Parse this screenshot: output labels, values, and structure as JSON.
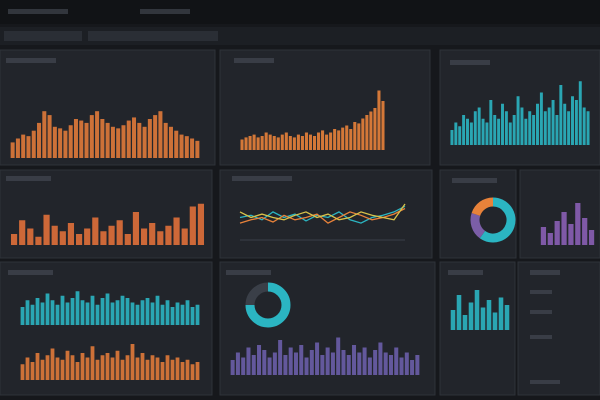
{
  "panels": [
    {
      "type": "bar",
      "color": "#e07a3a",
      "ylim": [
        0,
        100
      ],
      "values": [
        20,
        25,
        30,
        28,
        35,
        45,
        60,
        55,
        40,
        38,
        35,
        42,
        50,
        48,
        45,
        55,
        60,
        50,
        45,
        40,
        38,
        42,
        48,
        52,
        45,
        40,
        50,
        55,
        60,
        45,
        40,
        35,
        30,
        28,
        25,
        22
      ]
    },
    {
      "type": "bar",
      "color": "#e8823a",
      "ylim": [
        0,
        100
      ],
      "values": [
        15,
        18,
        20,
        22,
        18,
        20,
        25,
        22,
        20,
        18,
        22,
        25,
        20,
        18,
        22,
        20,
        25,
        22,
        20,
        25,
        28,
        22,
        25,
        30,
        28,
        32,
        35,
        30,
        40,
        38,
        45,
        50,
        55,
        60,
        85,
        70
      ]
    },
    {
      "type": "bar",
      "color": "#2bb5c2",
      "ylim": [
        0,
        100
      ],
      "values": [
        20,
        30,
        25,
        40,
        35,
        30,
        45,
        50,
        35,
        30,
        60,
        40,
        35,
        55,
        45,
        30,
        40,
        65,
        50,
        35,
        45,
        40,
        55,
        70,
        45,
        50,
        60,
        40,
        80,
        55,
        45,
        65,
        60,
        85,
        50,
        45
      ]
    },
    {
      "type": "bar",
      "color": "#e0703a",
      "ylim": [
        0,
        100
      ],
      "values": [
        20,
        45,
        30,
        15,
        55,
        35,
        25,
        40,
        20,
        30,
        50,
        25,
        35,
        45,
        20,
        60,
        30,
        40,
        25,
        35,
        50,
        30,
        70,
        75
      ]
    },
    {
      "type": "line",
      "ylim": [
        30,
        70
      ],
      "series": [
        {
          "color": "#2bb5c2",
          "values": [
            50,
            52,
            48,
            55,
            50,
            53,
            47,
            52,
            50,
            55,
            48,
            45,
            50,
            52,
            55,
            60
          ]
        },
        {
          "color": "#e8823a",
          "values": [
            45,
            48,
            50,
            46,
            52,
            48,
            50,
            53,
            45,
            50,
            55,
            52,
            48,
            50,
            53,
            58
          ]
        },
        {
          "color": "#d9c24a",
          "values": [
            55,
            50,
            53,
            50,
            48,
            52,
            55,
            50,
            53,
            48,
            50,
            55,
            52,
            50,
            48,
            62
          ]
        }
      ]
    },
    {
      "type": "donut",
      "colors": [
        "#2bb5c2",
        "#7b5ea7",
        "#e8823a"
      ],
      "values": [
        60,
        20,
        20
      ]
    },
    {
      "type": "bar",
      "color": "#8a5fb5",
      "ylim": [
        0,
        100
      ],
      "values": [
        30,
        20,
        40,
        55,
        35,
        70,
        45,
        25
      ]
    },
    {
      "type": "bar",
      "color": "#2bb5c2",
      "ylim": [
        0,
        100
      ],
      "values": [
        40,
        55,
        45,
        60,
        50,
        70,
        55,
        45,
        65,
        50,
        60,
        75,
        55,
        50,
        65,
        45,
        60,
        70,
        50,
        55,
        65,
        60,
        50,
        45,
        55,
        60,
        50,
        65,
        45,
        55,
        40,
        50,
        45,
        55,
        40,
        45
      ]
    },
    {
      "type": "bar",
      "color": "#e07a3a",
      "ylim": [
        0,
        100
      ],
      "values": [
        35,
        50,
        40,
        60,
        45,
        55,
        70,
        50,
        45,
        65,
        55,
        40,
        60,
        50,
        75,
        45,
        55,
        60,
        50,
        65,
        45,
        55,
        80,
        50,
        60,
        45,
        55,
        50,
        40,
        55,
        45,
        50,
        40,
        45,
        35,
        40
      ]
    },
    {
      "type": "donut",
      "colors": [
        "#2bb5c2",
        "#3a3f48"
      ],
      "values": [
        75,
        25
      ]
    },
    {
      "type": "bar",
      "color": "#6a5ea8",
      "ylim": [
        0,
        100
      ],
      "values": [
        30,
        45,
        35,
        55,
        40,
        60,
        50,
        35,
        45,
        70,
        40,
        55,
        45,
        60,
        35,
        50,
        65,
        40,
        55,
        45,
        75,
        50,
        40,
        60,
        45,
        55,
        35,
        50,
        65,
        45,
        40,
        55,
        35,
        45,
        30,
        40
      ]
    },
    {
      "type": "bar",
      "color": "#2bb5c2",
      "ylim": [
        0,
        100
      ],
      "values": [
        40,
        70,
        30,
        55,
        80,
        45,
        60,
        35,
        65,
        50
      ]
    }
  ]
}
